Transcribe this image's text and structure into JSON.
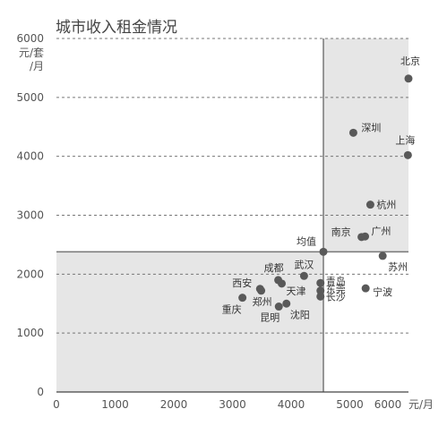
{
  "chart_data": {
    "type": "scatter",
    "title": "城市收入租金情况",
    "x_unit": "元/月",
    "y_unit_lines": [
      "元/套",
      "/月"
    ],
    "xlim": [
      0,
      6000
    ],
    "ylim": [
      0,
      6000
    ],
    "x_ticks": [
      0,
      1000,
      2000,
      3000,
      4000,
      5000,
      6000
    ],
    "y_ticks": [
      0,
      1000,
      2000,
      3000,
      4000,
      5000,
      6000
    ],
    "gridlines": "horizontal dashed",
    "average": {
      "label": "均值",
      "x": 4550,
      "y": 2380
    },
    "point_color": "#595959",
    "shade_color": "#e6e6e6",
    "points": [
      {
        "city": "北京",
        "x": 6000,
        "y": 5320
      },
      {
        "city": "深圳",
        "x": 5060,
        "y": 4400
      },
      {
        "city": "上海",
        "x": 5990,
        "y": 4020
      },
      {
        "city": "杭州",
        "x": 5350,
        "y": 3180
      },
      {
        "city": "南京",
        "x": 5200,
        "y": 2630
      },
      {
        "city": "广州",
        "x": 5260,
        "y": 2640
      },
      {
        "city": "苏州",
        "x": 5560,
        "y": 2310
      },
      {
        "city": "均值",
        "x": 4550,
        "y": 2380
      },
      {
        "city": "武汉",
        "x": 4220,
        "y": 1970
      },
      {
        "city": "成都",
        "x": 3780,
        "y": 1900
      },
      {
        "city": "西安",
        "x": 3470,
        "y": 1750
      },
      {
        "city": "天津",
        "x": 3840,
        "y": 1840
      },
      {
        "city": "青岛",
        "x": 4500,
        "y": 1850
      },
      {
        "city": "东莞",
        "x": 4500,
        "y": 1720
      },
      {
        "city": "长沙",
        "x": 4500,
        "y": 1620
      },
      {
        "city": "宁波",
        "x": 5270,
        "y": 1760
      },
      {
        "city": "郑州",
        "x": 3490,
        "y": 1720
      },
      {
        "city": "重庆",
        "x": 3170,
        "y": 1600
      },
      {
        "city": "昆明",
        "x": 3790,
        "y": 1450
      },
      {
        "city": "沈阳",
        "x": 3920,
        "y": 1500
      }
    ]
  }
}
